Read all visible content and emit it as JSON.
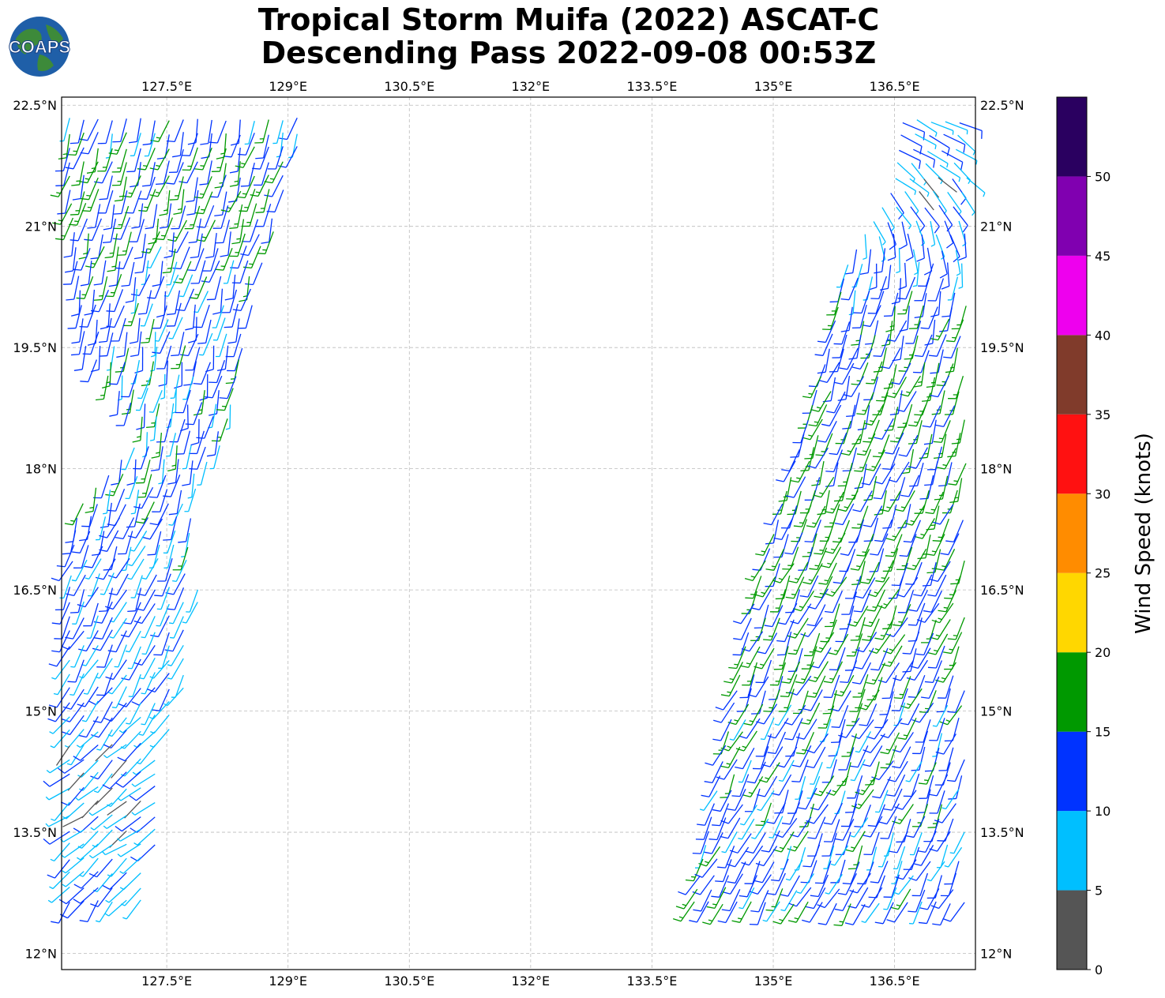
{
  "title_line1": "Tropical Storm Muifa (2022) ASCAT-C",
  "title_line2": "Descending Pass 2022-09-08 00:53Z",
  "logo_text": "COAPS",
  "map": {
    "lon_range": [
      126.2,
      137.5
    ],
    "lat_range": [
      11.8,
      22.6
    ],
    "grid": true,
    "lon_ticks": [
      127.5,
      129.0,
      130.5,
      132.0,
      133.5,
      135.0,
      136.5
    ],
    "lon_tick_labels": [
      "127.5°E",
      "129°E",
      "130.5°E",
      "132°E",
      "133.5°E",
      "135°E",
      "136.5°E"
    ],
    "lat_ticks": [
      12.0,
      13.5,
      15.0,
      16.5,
      18.0,
      19.5,
      21.0,
      22.5
    ],
    "lat_tick_labels": [
      "12°N",
      "13.5°N",
      "15°N",
      "16.5°N",
      "18°N",
      "19.5°N",
      "21°N",
      "22.5°N"
    ]
  },
  "colorbar": {
    "label": "Wind Speed (knots)",
    "bins": [
      {
        "min": 0,
        "max": 5,
        "color": "#555555"
      },
      {
        "min": 5,
        "max": 10,
        "color": "#00bfff"
      },
      {
        "min": 10,
        "max": 15,
        "color": "#0033ff"
      },
      {
        "min": 15,
        "max": 20,
        "color": "#009900"
      },
      {
        "min": 20,
        "max": 25,
        "color": "#ffd700"
      },
      {
        "min": 25,
        "max": 30,
        "color": "#ff8c00"
      },
      {
        "min": 30,
        "max": 35,
        "color": "#ff1111"
      },
      {
        "min": 35,
        "max": 40,
        "color": "#803b2b"
      },
      {
        "min": 40,
        "max": 45,
        "color": "#ee00ee"
      },
      {
        "min": 45,
        "max": 50,
        "color": "#8000b0"
      },
      {
        "min": 50,
        "max": 55,
        "color": "#2a0060"
      }
    ],
    "tick_values": [
      0,
      5,
      10,
      15,
      20,
      25,
      30,
      35,
      40,
      45,
      50
    ],
    "tick_labels": [
      "0",
      "5",
      "10",
      "15",
      "20",
      "25",
      "30",
      "35",
      "40",
      "45",
      "50"
    ]
  },
  "chart_data": {
    "type": "wind_barbs",
    "units": "knots",
    "swaths": [
      {
        "name": "west",
        "rows": [
          {
            "lat": 22.5,
            "lon_start": 126.3,
            "lon_end": 129.3,
            "dir_deg": 195,
            "spd": 12
          },
          {
            "lat": 21.5,
            "lon_start": 126.3,
            "lon_end": 129.0,
            "dir_deg": 198,
            "spd": 16
          },
          {
            "lat": 20.5,
            "lon_start": 126.4,
            "lon_end": 128.7,
            "dir_deg": 195,
            "spd": 13
          },
          {
            "lat": 19.5,
            "lon_start": 126.5,
            "lon_end": 128.5,
            "dir_deg": 192,
            "spd": 12
          },
          {
            "lat": 18.5,
            "lon_start": 127.3,
            "lon_end": 128.3,
            "dir_deg": 190,
            "spd": 12
          },
          {
            "lat": 17.5,
            "lon_start": 126.4,
            "lon_end": 127.8,
            "dir_deg": 200,
            "spd": 12
          },
          {
            "lat": 16.5,
            "lon_start": 126.3,
            "lon_end": 127.9,
            "dir_deg": 205,
            "spd": 11
          },
          {
            "lat": 15.5,
            "lon_start": 126.3,
            "lon_end": 127.8,
            "dir_deg": 210,
            "spd": 10
          },
          {
            "lat": 14.5,
            "lon_start": 126.3,
            "lon_end": 127.5,
            "dir_deg": 225,
            "spd": 8
          },
          {
            "lat": 13.5,
            "lon_start": 126.3,
            "lon_end": 127.4,
            "dir_deg": 235,
            "spd": 8
          },
          {
            "lat": 12.5,
            "lon_start": 126.3,
            "lon_end": 127.2,
            "dir_deg": 215,
            "spd": 11
          }
        ]
      },
      {
        "name": "east",
        "rows": [
          {
            "lat": 22.3,
            "lon_start": 136.6,
            "lon_end": 137.4,
            "dir_deg": 120,
            "spd": 11
          },
          {
            "lat": 21.5,
            "lon_start": 136.5,
            "lon_end": 137.4,
            "dir_deg": 135,
            "spd": 8
          },
          {
            "lat": 20.5,
            "lon_start": 135.9,
            "lon_end": 137.4,
            "dir_deg": 190,
            "spd": 11
          },
          {
            "lat": 19.5,
            "lon_start": 135.7,
            "lon_end": 137.4,
            "dir_deg": 200,
            "spd": 14
          },
          {
            "lat": 18.5,
            "lon_start": 135.4,
            "lon_end": 137.4,
            "dir_deg": 200,
            "spd": 15
          },
          {
            "lat": 17.5,
            "lon_start": 135.1,
            "lon_end": 137.4,
            "dir_deg": 202,
            "spd": 16
          },
          {
            "lat": 16.5,
            "lon_start": 134.8,
            "lon_end": 137.4,
            "dir_deg": 205,
            "spd": 15
          },
          {
            "lat": 15.5,
            "lon_start": 134.6,
            "lon_end": 137.4,
            "dir_deg": 205,
            "spd": 14
          },
          {
            "lat": 14.5,
            "lon_start": 134.4,
            "lon_end": 137.4,
            "dir_deg": 205,
            "spd": 13
          },
          {
            "lat": 13.5,
            "lon_start": 134.2,
            "lon_end": 137.4,
            "dir_deg": 205,
            "spd": 12
          },
          {
            "lat": 12.5,
            "lon_start": 134.0,
            "lon_end": 137.4,
            "dir_deg": 210,
            "spd": 12
          }
        ]
      }
    ]
  }
}
